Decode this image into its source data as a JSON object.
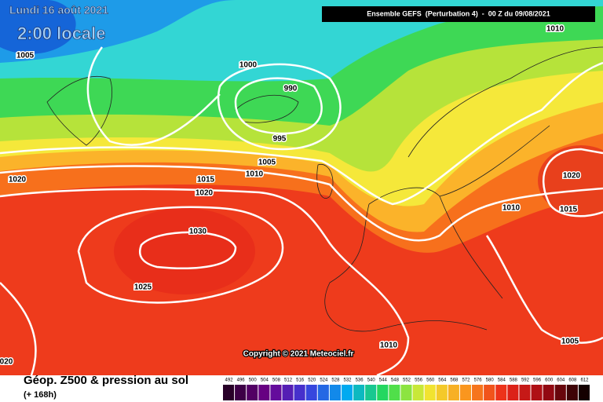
{
  "header": {
    "date": "Lundi 16 août 2021",
    "time": "2:00 locale",
    "model": "Ensemble GEFS  (Perturbation 4)  -  00 Z du 09/08/2021"
  },
  "isobar_labels": [
    "1005",
    "1000",
    "990",
    "995",
    "1005",
    "1010",
    "1015",
    "1020",
    "1020",
    "1030",
    "1025",
    "1010",
    "1020",
    "1010",
    "1015",
    "1005",
    "1010",
    "020"
  ],
  "copyright": "Copyright © 2021 Meteociel.fr",
  "footer": {
    "title": "Géop. Z500 & pression au sol",
    "lead": "(+ 168h)"
  },
  "legend": [
    "492",
    "496",
    "500",
    "504",
    "508",
    "512",
    "516",
    "520",
    "524",
    "528",
    "532",
    "536",
    "540",
    "544",
    "548",
    "552",
    "556",
    "560",
    "564",
    "568",
    "572",
    "576",
    "580",
    "584",
    "588",
    "592",
    "596",
    "600",
    "604",
    "608",
    "612"
  ]
}
